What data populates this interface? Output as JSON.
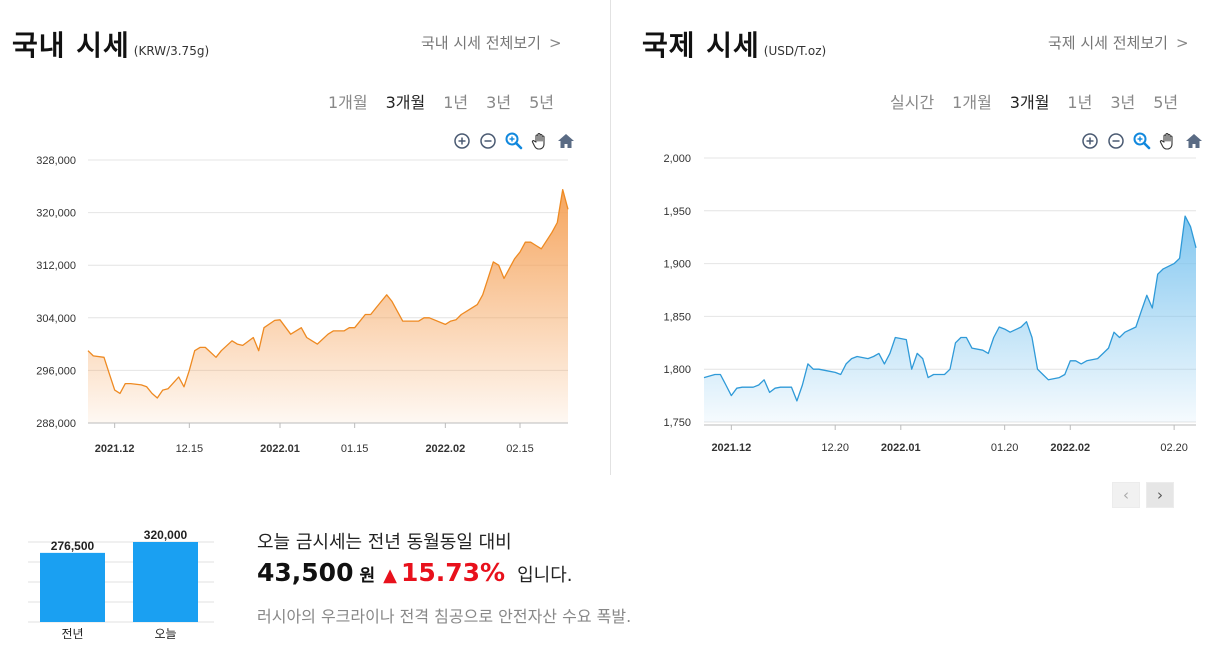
{
  "domestic": {
    "title": "국내 시세",
    "unit": "(KRW/3.75g)",
    "view_all": "국내 시세 전체보기",
    "view_all_chevron": ">",
    "periods": [
      "1개월",
      "3개월",
      "1년",
      "3년",
      "5년"
    ],
    "active_period": "3개월",
    "tools": [
      "zoom-in-icon",
      "zoom-out-icon",
      "magnifier-icon",
      "hand-pan-icon",
      "home-icon"
    ]
  },
  "international": {
    "title": "국제 시세",
    "unit": "(USD/T.oz)",
    "view_all": "국제 시세 전체보기",
    "view_all_chevron": ">",
    "periods": [
      "실시간",
      "1개월",
      "3개월",
      "1년",
      "3년",
      "5년"
    ],
    "active_period": "3개월",
    "tools": [
      "zoom-in-icon",
      "zoom-out-icon",
      "magnifier-icon",
      "hand-pan-icon",
      "home-icon"
    ],
    "nav_prev": "‹",
    "nav_next": "›"
  },
  "chart_data": [
    {
      "type": "area",
      "id": "domestic",
      "color": "#ee8a22",
      "fill_top": "#f5a055",
      "ylim": [
        288000,
        328000
      ],
      "yticks": [
        288000,
        296000,
        304000,
        312000,
        320000,
        328000
      ],
      "ytick_labels": [
        "288,000",
        "296,000",
        "304,000",
        "312,000",
        "320,000",
        "328,000"
      ],
      "xlim": [
        "2021-11-26",
        "2022-02-24"
      ],
      "xticks": [
        {
          "date": "2021-12-01",
          "label": "2021.12",
          "bold": true
        },
        {
          "date": "2021-12-15",
          "label": "12.15",
          "bold": false
        },
        {
          "date": "2022-01-01",
          "label": "2022.01",
          "bold": true
        },
        {
          "date": "2022-01-15",
          "label": "01.15",
          "bold": false
        },
        {
          "date": "2022-02-01",
          "label": "2022.02",
          "bold": true
        },
        {
          "date": "2022-02-15",
          "label": "02.15",
          "bold": false
        }
      ],
      "x": [
        "2021-11-26",
        "2021-11-27",
        "2021-11-29",
        "2021-11-30",
        "2021-12-01",
        "2021-12-02",
        "2021-12-03",
        "2021-12-04",
        "2021-12-06",
        "2021-12-07",
        "2021-12-08",
        "2021-12-09",
        "2021-12-10",
        "2021-12-11",
        "2021-12-13",
        "2021-12-14",
        "2021-12-15",
        "2021-12-16",
        "2021-12-17",
        "2021-12-18",
        "2021-12-20",
        "2021-12-21",
        "2021-12-23",
        "2021-12-24",
        "2021-12-25",
        "2021-12-27",
        "2021-12-28",
        "2021-12-29",
        "2021-12-31",
        "2022-01-01",
        "2022-01-03",
        "2022-01-04",
        "2022-01-05",
        "2022-01-06",
        "2022-01-07",
        "2022-01-08",
        "2022-01-10",
        "2022-01-11",
        "2022-01-12",
        "2022-01-13",
        "2022-01-14",
        "2022-01-15",
        "2022-01-17",
        "2022-01-18",
        "2022-01-19",
        "2022-01-20",
        "2022-01-21",
        "2022-01-22",
        "2022-01-24",
        "2022-01-25",
        "2022-01-26",
        "2022-01-27",
        "2022-01-28",
        "2022-01-29",
        "2022-02-01",
        "2022-02-02",
        "2022-02-03",
        "2022-02-04",
        "2022-02-05",
        "2022-02-07",
        "2022-02-08",
        "2022-02-09",
        "2022-02-10",
        "2022-02-11",
        "2022-02-12",
        "2022-02-14",
        "2022-02-15",
        "2022-02-16",
        "2022-02-17",
        "2022-02-18",
        "2022-02-19",
        "2022-02-21",
        "2022-02-22",
        "2022-02-23",
        "2022-02-24"
      ],
      "y": [
        299000,
        298200,
        298000,
        295500,
        293000,
        292500,
        294000,
        294000,
        293800,
        293500,
        292500,
        291800,
        293000,
        293200,
        295000,
        293500,
        296000,
        299000,
        299500,
        299500,
        298000,
        299000,
        300500,
        300000,
        299800,
        301000,
        299000,
        302500,
        303600,
        303700,
        301500,
        302000,
        302500,
        301000,
        300500,
        300000,
        301500,
        302000,
        302000,
        302000,
        302500,
        302500,
        304500,
        304500,
        305500,
        306500,
        307500,
        306500,
        303500,
        303500,
        303500,
        303500,
        304000,
        304000,
        303000,
        303500,
        303700,
        304500,
        305000,
        306000,
        307500,
        310000,
        312500,
        312000,
        310000,
        313000,
        314000,
        315500,
        315500,
        315000,
        314500,
        317000,
        318500,
        323500,
        320500
      ]
    },
    {
      "type": "area",
      "id": "international",
      "color": "#2f9ad8",
      "fill_top": "#7cc4ef",
      "ylim": [
        1750,
        2000
      ],
      "yticks": [
        1750,
        1800,
        1850,
        1900,
        1950,
        2000
      ],
      "ytick_labels": [
        "1,750",
        "1,800",
        "1,850",
        "1,900",
        "1,950",
        "2,000"
      ],
      "xlim": [
        "2021-11-26",
        "2022-02-24"
      ],
      "xticks": [
        {
          "date": "2021-12-01",
          "label": "2021.12",
          "bold": true
        },
        {
          "date": "2021-12-20",
          "label": "12.20",
          "bold": false
        },
        {
          "date": "2022-01-01",
          "label": "2022.01",
          "bold": true
        },
        {
          "date": "2022-01-20",
          "label": "01.20",
          "bold": false
        },
        {
          "date": "2022-02-01",
          "label": "2022.02",
          "bold": true
        },
        {
          "date": "2022-02-20",
          "label": "02.20",
          "bold": false
        }
      ],
      "x": [
        "2021-11-26",
        "2021-11-28",
        "2021-11-29",
        "2021-11-30",
        "2021-12-01",
        "2021-12-02",
        "2021-12-03",
        "2021-12-05",
        "2021-12-06",
        "2021-12-07",
        "2021-12-08",
        "2021-12-09",
        "2021-12-10",
        "2021-12-12",
        "2021-12-13",
        "2021-12-14",
        "2021-12-15",
        "2021-12-16",
        "2021-12-17",
        "2021-12-19",
        "2021-12-20",
        "2021-12-21",
        "2021-12-22",
        "2021-12-23",
        "2021-12-24",
        "2021-12-26",
        "2021-12-27",
        "2021-12-28",
        "2021-12-29",
        "2021-12-30",
        "2021-12-31",
        "2022-01-02",
        "2022-01-03",
        "2022-01-04",
        "2022-01-05",
        "2022-01-06",
        "2022-01-07",
        "2022-01-09",
        "2022-01-10",
        "2022-01-11",
        "2022-01-12",
        "2022-01-13",
        "2022-01-14",
        "2022-01-16",
        "2022-01-17",
        "2022-01-18",
        "2022-01-19",
        "2022-01-20",
        "2022-01-21",
        "2022-01-23",
        "2022-01-24",
        "2022-01-25",
        "2022-01-26",
        "2022-01-27",
        "2022-01-28",
        "2022-01-30",
        "2022-01-31",
        "2022-02-01",
        "2022-02-02",
        "2022-02-03",
        "2022-02-04",
        "2022-02-06",
        "2022-02-07",
        "2022-02-08",
        "2022-02-09",
        "2022-02-10",
        "2022-02-11",
        "2022-02-13",
        "2022-02-14",
        "2022-02-15",
        "2022-02-16",
        "2022-02-17",
        "2022-02-18",
        "2022-02-20",
        "2022-02-21",
        "2022-02-22",
        "2022-02-23",
        "2022-02-24"
      ],
      "y": [
        1792,
        1795,
        1795,
        1785,
        1775,
        1782,
        1783,
        1783,
        1785,
        1790,
        1778,
        1782,
        1783,
        1783,
        1770,
        1785,
        1805,
        1800,
        1800,
        1798,
        1797,
        1795,
        1805,
        1810,
        1812,
        1810,
        1812,
        1815,
        1805,
        1815,
        1830,
        1828,
        1800,
        1815,
        1810,
        1792,
        1795,
        1795,
        1800,
        1825,
        1830,
        1830,
        1820,
        1818,
        1815,
        1830,
        1840,
        1838,
        1835,
        1840,
        1845,
        1830,
        1800,
        1795,
        1790,
        1792,
        1795,
        1808,
        1808,
        1805,
        1808,
        1810,
        1815,
        1820,
        1835,
        1830,
        1835,
        1840,
        1855,
        1870,
        1858,
        1890,
        1895,
        1900,
        1905,
        1945,
        1935,
        1915
      ]
    }
  ],
  "comparison": {
    "last_year_value": 276500,
    "today_value": 320000,
    "last_year_value_text": "276,500",
    "today_value_text": "320,000",
    "last_year_label": "전년",
    "today_label": "오늘",
    "bar_color": "#1aa0f2",
    "ylim": [
      0,
      320000
    ]
  },
  "summary": {
    "line1": "오늘 금시세는 전년 동월동일 대비",
    "amount": "43,500",
    "won": "원",
    "arrow": "▲",
    "percent": "15.73%",
    "tail": "입니다.",
    "note": "러시아의 우크라이나 전격 침공으로 안전자산 수요 폭발."
  }
}
